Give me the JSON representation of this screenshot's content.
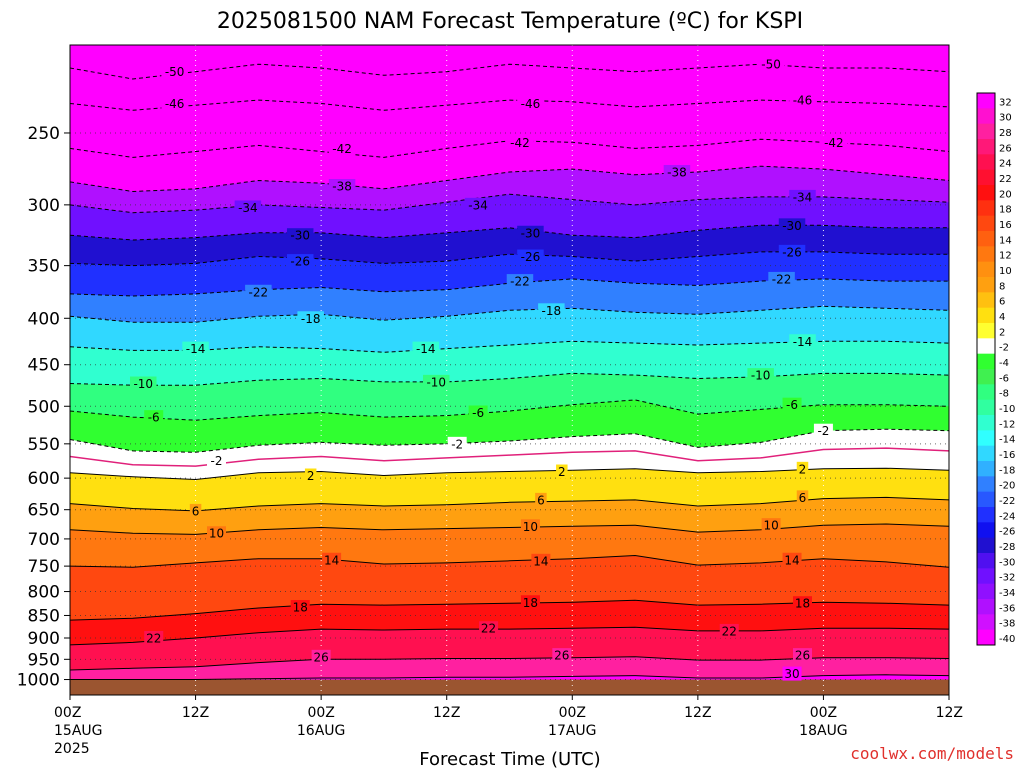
{
  "chart_data": {
    "type": "heatmap",
    "title": "2025081500 NAM Forecast Temperature (ºC) for KSPI",
    "xlabel": "Forecast Time (UTC)",
    "ylabel": "",
    "credit": "coolwx.com/models",
    "y_scale": "log",
    "y_inverted": true,
    "y_ticks": [
      250,
      300,
      350,
      400,
      450,
      500,
      550,
      600,
      650,
      700,
      750,
      800,
      850,
      900,
      950,
      1000
    ],
    "x_ticks": [
      {
        "hour": 0,
        "line1": "00Z",
        "line2": "15AUG",
        "line3": "2025"
      },
      {
        "hour": 12,
        "line1": "12Z",
        "line2": "",
        "line3": ""
      },
      {
        "hour": 24,
        "line1": "00Z",
        "line2": "16AUG",
        "line3": ""
      },
      {
        "hour": 36,
        "line1": "12Z",
        "line2": "",
        "line3": ""
      },
      {
        "hour": 48,
        "line1": "00Z",
        "line2": "17AUG",
        "line3": ""
      },
      {
        "hour": 60,
        "line1": "12Z",
        "line2": "",
        "line3": ""
      },
      {
        "hour": 72,
        "line1": "00Z",
        "line2": "18AUG",
        "line3": ""
      },
      {
        "hour": 84,
        "line1": "12Z",
        "line2": "",
        "line3": ""
      }
    ],
    "grid": true,
    "colorbar": {
      "placement": "right",
      "levels": [
        32,
        30,
        28,
        26,
        24,
        22,
        20,
        18,
        16,
        14,
        12,
        10,
        8,
        6,
        4,
        2,
        -2,
        -4,
        -6,
        -8,
        -10,
        -12,
        -14,
        -16,
        -18,
        -20,
        -22,
        -24,
        -26,
        -28,
        -30,
        -32,
        -34,
        -36,
        -38,
        -40
      ],
      "colors": [
        "#ff00ff",
        "#ff10d0",
        "#ff20a0",
        "#ff1878",
        "#ff1050",
        "#ff1030",
        "#ff1010",
        "#ff3010",
        "#ff4810",
        "#ff6010",
        "#ff7810",
        "#ff9010",
        "#ffa010",
        "#ffc010",
        "#ffe010",
        "#ffff30",
        "#ffffff",
        "#30ff30",
        "#40f050",
        "#30ff80",
        "#30ffa0",
        "#30ffd0",
        "#30ffff",
        "#30d8ff",
        "#30b0ff",
        "#3080ff",
        "#2858ff",
        "#2030ff",
        "#1010f0",
        "#2010d0",
        "#5010f0",
        "#7010ff",
        "#9010ff",
        "#b010ff",
        "#d010ff",
        "#ff00ff"
      ]
    },
    "isotherms": [
      {
        "temp": -50,
        "style": "dashed",
        "pressure": [
          212,
          218,
          214,
          210,
          212,
          216,
          214,
          210,
          212,
          214,
          212,
          210,
          212,
          212,
          214
        ]
      },
      {
        "temp": -46,
        "style": "dashed",
        "pressure": [
          232,
          236,
          233,
          230,
          232,
          236,
          233,
          230,
          231,
          234,
          232,
          230,
          231,
          232,
          234
        ]
      },
      {
        "temp": -42,
        "style": "dashed",
        "pressure": [
          260,
          266,
          262,
          258,
          262,
          266,
          260,
          255,
          256,
          260,
          258,
          254,
          256,
          258,
          262
        ]
      },
      {
        "temp": -38,
        "style": "dashed",
        "pressure": [
          283,
          290,
          288,
          282,
          284,
          288,
          282,
          276,
          274,
          278,
          276,
          272,
          274,
          278,
          282
        ]
      },
      {
        "temp": -34,
        "style": "dashed",
        "pressure": [
          300,
          306,
          304,
          300,
          302,
          304,
          298,
          292,
          296,
          300,
          296,
          294,
          294,
          296,
          298
        ]
      },
      {
        "temp": -30,
        "style": "dashed",
        "pressure": [
          324,
          328,
          326,
          322,
          322,
          326,
          322,
          318,
          324,
          326,
          320,
          316,
          316,
          318,
          318
        ]
      },
      {
        "temp": -26,
        "style": "dashed",
        "pressure": [
          348,
          350,
          348,
          342,
          344,
          348,
          346,
          340,
          342,
          346,
          342,
          338,
          338,
          340,
          340
        ]
      },
      {
        "temp": -22,
        "style": "dashed",
        "pressure": [
          376,
          378,
          376,
          372,
          370,
          374,
          372,
          366,
          362,
          366,
          368,
          364,
          362,
          364,
          364
        ]
      },
      {
        "temp": -18,
        "style": "dashed",
        "pressure": [
          398,
          404,
          404,
          398,
          396,
          402,
          398,
          392,
          390,
          394,
          396,
          392,
          388,
          390,
          392
        ]
      },
      {
        "temp": -14,
        "style": "dashed",
        "pressure": [
          430,
          434,
          434,
          430,
          432,
          436,
          432,
          428,
          424,
          426,
          428,
          426,
          424,
          424,
          426
        ]
      },
      {
        "temp": -10,
        "style": "dashed",
        "pressure": [
          472,
          474,
          474,
          468,
          466,
          470,
          470,
          466,
          460,
          462,
          466,
          464,
          460,
          460,
          462
        ]
      },
      {
        "temp": -6,
        "style": "dashed",
        "pressure": [
          506,
          514,
          518,
          512,
          508,
          514,
          512,
          506,
          498,
          492,
          510,
          504,
          498,
          498,
          500
        ]
      },
      {
        "temp": -2,
        "style": "dashed",
        "pressure": [
          544,
          560,
          562,
          552,
          548,
          552,
          550,
          546,
          540,
          536,
          555,
          548,
          532,
          530,
          532
        ]
      },
      {
        "temp": 2,
        "style": "solid",
        "pressure": [
          592,
          598,
          602,
          592,
          590,
          596,
          592,
          590,
          588,
          586,
          592,
          590,
          586,
          585,
          588
        ]
      },
      {
        "temp": 6,
        "style": "solid",
        "pressure": [
          640,
          648,
          652,
          644,
          640,
          644,
          642,
          638,
          636,
          634,
          644,
          640,
          632,
          630,
          634
        ]
      },
      {
        "temp": 10,
        "style": "solid",
        "pressure": [
          684,
          690,
          692,
          684,
          680,
          684,
          682,
          680,
          678,
          676,
          688,
          684,
          676,
          674,
          678
        ]
      },
      {
        "temp": 14,
        "style": "solid",
        "pressure": [
          750,
          752,
          744,
          736,
          736,
          746,
          744,
          740,
          736,
          730,
          748,
          744,
          736,
          742,
          752
        ]
      },
      {
        "temp": 18,
        "style": "solid",
        "pressure": [
          860,
          856,
          846,
          834,
          826,
          828,
          826,
          824,
          822,
          818,
          828,
          826,
          822,
          824,
          828
        ]
      },
      {
        "temp": 22,
        "style": "solid",
        "pressure": [
          916,
          910,
          900,
          888,
          880,
          882,
          880,
          880,
          878,
          876,
          884,
          884,
          878,
          878,
          880
        ]
      },
      {
        "temp": 26,
        "style": "solid",
        "pressure": [
          976,
          972,
          968,
          958,
          950,
          950,
          948,
          948,
          946,
          944,
          952,
          952,
          946,
          946,
          948
        ]
      },
      {
        "temp": 30,
        "style": "solid",
        "pressure": [
          1000,
          1000,
          1000,
          998,
          996,
          996,
          994,
          994,
          992,
          990,
          996,
          996,
          990,
          988,
          990
        ]
      }
    ],
    "isotherm_hours": [
      0,
      6,
      12,
      18,
      24,
      30,
      36,
      42,
      48,
      54,
      60,
      66,
      72,
      78,
      84
    ],
    "freezing_line": {
      "temp": 0,
      "color": "#e0207a",
      "pressure": [
        568,
        580,
        582,
        572,
        568,
        574,
        570,
        566,
        562,
        560,
        574,
        570,
        558,
        556,
        560
      ]
    },
    "contour_labels": [
      {
        "temp": -50,
        "hour": 10,
        "pressure": 214
      },
      {
        "temp": -50,
        "hour": 67,
        "pressure": 210
      },
      {
        "temp": -46,
        "hour": 10,
        "pressure": 232
      },
      {
        "temp": -46,
        "hour": 44,
        "pressure": 232
      },
      {
        "temp": -46,
        "hour": 70,
        "pressure": 230
      },
      {
        "temp": -42,
        "hour": 26,
        "pressure": 260
      },
      {
        "temp": -42,
        "hour": 43,
        "pressure": 256
      },
      {
        "temp": -42,
        "hour": 73,
        "pressure": 256
      },
      {
        "temp": -38,
        "hour": 26,
        "pressure": 286
      },
      {
        "temp": -38,
        "hour": 58,
        "pressure": 276
      },
      {
        "temp": -34,
        "hour": 17,
        "pressure": 302
      },
      {
        "temp": -34,
        "hour": 39,
        "pressure": 300
      },
      {
        "temp": -34,
        "hour": 70,
        "pressure": 294
      },
      {
        "temp": -30,
        "hour": 22,
        "pressure": 324
      },
      {
        "temp": -30,
        "hour": 44,
        "pressure": 322
      },
      {
        "temp": -30,
        "hour": 69,
        "pressure": 316
      },
      {
        "temp": -26,
        "hour": 22,
        "pressure": 346
      },
      {
        "temp": -26,
        "hour": 44,
        "pressure": 342
      },
      {
        "temp": -26,
        "hour": 69,
        "pressure": 338
      },
      {
        "temp": -22,
        "hour": 18,
        "pressure": 374
      },
      {
        "temp": -22,
        "hour": 43,
        "pressure": 364
      },
      {
        "temp": -22,
        "hour": 68,
        "pressure": 362
      },
      {
        "temp": -18,
        "hour": 23,
        "pressure": 400
      },
      {
        "temp": -18,
        "hour": 46,
        "pressure": 392
      },
      {
        "temp": -14,
        "hour": 12,
        "pressure": 432
      },
      {
        "temp": -14,
        "hour": 34,
        "pressure": 432
      },
      {
        "temp": -14,
        "hour": 70,
        "pressure": 424
      },
      {
        "temp": -10,
        "hour": 7,
        "pressure": 472
      },
      {
        "temp": -10,
        "hour": 35,
        "pressure": 470
      },
      {
        "temp": -10,
        "hour": 66,
        "pressure": 462
      },
      {
        "temp": -6,
        "hour": 8,
        "pressure": 514
      },
      {
        "temp": -6,
        "hour": 39,
        "pressure": 508
      },
      {
        "temp": -6,
        "hour": 69,
        "pressure": 498
      },
      {
        "temp": -2,
        "hour": 14,
        "pressure": 574
      },
      {
        "temp": -2,
        "hour": 37,
        "pressure": 550
      },
      {
        "temp": -2,
        "hour": 72,
        "pressure": 532
      },
      {
        "temp": 2,
        "hour": 23,
        "pressure": 596
      },
      {
        "temp": 2,
        "hour": 47,
        "pressure": 590
      },
      {
        "temp": 2,
        "hour": 70,
        "pressure": 586
      },
      {
        "temp": 6,
        "hour": 12,
        "pressure": 652
      },
      {
        "temp": 6,
        "hour": 45,
        "pressure": 634
      },
      {
        "temp": 6,
        "hour": 70,
        "pressure": 630
      },
      {
        "temp": 10,
        "hour": 14,
        "pressure": 690
      },
      {
        "temp": 10,
        "hour": 44,
        "pressure": 678
      },
      {
        "temp": 10,
        "hour": 67,
        "pressure": 676
      },
      {
        "temp": 14,
        "hour": 25,
        "pressure": 738
      },
      {
        "temp": 14,
        "hour": 45,
        "pressure": 740
      },
      {
        "temp": 14,
        "hour": 69,
        "pressure": 738
      },
      {
        "temp": 18,
        "hour": 22,
        "pressure": 832
      },
      {
        "temp": 18,
        "hour": 44,
        "pressure": 822
      },
      {
        "temp": 18,
        "hour": 70,
        "pressure": 824
      },
      {
        "temp": 22,
        "hour": 8,
        "pressure": 900
      },
      {
        "temp": 22,
        "hour": 40,
        "pressure": 878
      },
      {
        "temp": 22,
        "hour": 63,
        "pressure": 884
      },
      {
        "temp": 26,
        "hour": 24,
        "pressure": 944
      },
      {
        "temp": 26,
        "hour": 47,
        "pressure": 940
      },
      {
        "temp": 26,
        "hour": 70,
        "pressure": 940
      },
      {
        "temp": 30,
        "hour": 69,
        "pressure": 985
      }
    ],
    "surface": {
      "pressure": 1000,
      "color": "#9b5530"
    }
  }
}
